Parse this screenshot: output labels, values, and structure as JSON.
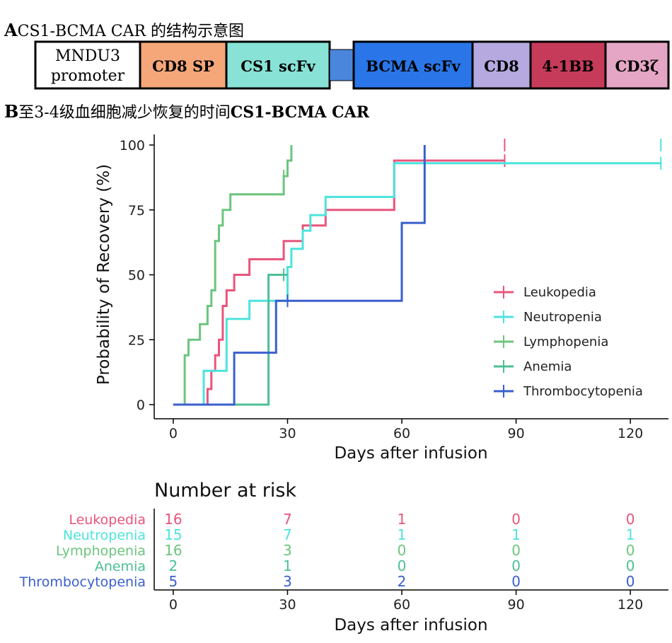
{
  "panelA": {
    "letter": "A",
    "title": "CS1-BCMA CAR 的结构示意图",
    "segments": [
      {
        "label": "MNDU3 promoter",
        "line1": "MNDU3",
        "line2": "promoter",
        "color": "#ffffff"
      },
      {
        "label": "CD8 SP",
        "color": "#f6a77a"
      },
      {
        "label": "CS1 scFv",
        "color": "#88e3d6"
      },
      {
        "label": "",
        "color": "#4a86dc"
      },
      {
        "label": "BCMA scFv",
        "color": "#2a76e8"
      },
      {
        "label": "CD8",
        "color": "#b5a9e0"
      },
      {
        "label": "4-1BB",
        "color": "#c73b5a"
      },
      {
        "label": "CD3ζ",
        "color": "#e4a6c4"
      }
    ]
  },
  "panelB": {
    "letter": "B",
    "title": "至3-4级血细胞减少恢复的时间",
    "title_bold": "CS1-BCMA CAR"
  },
  "chart_data": {
    "type": "line",
    "subtype": "kaplan-meier-step",
    "xlabel": "Days after infusion",
    "ylabel": "Probability of Recovery (%)",
    "xlim": [
      -5,
      130
    ],
    "ylim": [
      0,
      100
    ],
    "xticks": [
      0,
      30,
      60,
      90,
      120
    ],
    "yticks": [
      0,
      25,
      50,
      75,
      100
    ],
    "grid": false,
    "legend_position": "right-center",
    "series": [
      {
        "name": "Leukopedia",
        "color": "#e8557b",
        "steps": [
          [
            0,
            0
          ],
          [
            9,
            0
          ],
          [
            9,
            6
          ],
          [
            10,
            6
          ],
          [
            10,
            13
          ],
          [
            11,
            13
          ],
          [
            11,
            19
          ],
          [
            12,
            19
          ],
          [
            12,
            25
          ],
          [
            13,
            25
          ],
          [
            13,
            38
          ],
          [
            14,
            38
          ],
          [
            14,
            44
          ],
          [
            16,
            44
          ],
          [
            16,
            50
          ],
          [
            20,
            50
          ],
          [
            20,
            56
          ],
          [
            29,
            56
          ],
          [
            29,
            63
          ],
          [
            34,
            63
          ],
          [
            34,
            69
          ],
          [
            40,
            69
          ],
          [
            40,
            75
          ],
          [
            58,
            75
          ],
          [
            58,
            94
          ],
          [
            87,
            94
          ]
        ],
        "censor": [
          [
            87,
            94
          ],
          [
            87,
            100
          ]
        ]
      },
      {
        "name": "Neutropenia",
        "color": "#4de3dd",
        "steps": [
          [
            0,
            0
          ],
          [
            8,
            0
          ],
          [
            8,
            13
          ],
          [
            14,
            13
          ],
          [
            14,
            33
          ],
          [
            20,
            33
          ],
          [
            20,
            40
          ],
          [
            30,
            40
          ],
          [
            30,
            53
          ],
          [
            31,
            53
          ],
          [
            31,
            60
          ],
          [
            34,
            60
          ],
          [
            34,
            67
          ],
          [
            36,
            67
          ],
          [
            36,
            73
          ],
          [
            40,
            73
          ],
          [
            40,
            80
          ],
          [
            58,
            80
          ],
          [
            58,
            93
          ],
          [
            128,
            93
          ]
        ],
        "censor": [
          [
            128,
            93
          ],
          [
            128,
            100
          ]
        ]
      },
      {
        "name": "Lymphopenia",
        "color": "#6cc57e",
        "steps": [
          [
            0,
            0
          ],
          [
            3,
            0
          ],
          [
            3,
            19
          ],
          [
            4,
            19
          ],
          [
            4,
            25
          ],
          [
            7,
            25
          ],
          [
            7,
            31
          ],
          [
            9,
            31
          ],
          [
            9,
            38
          ],
          [
            10,
            38
          ],
          [
            10,
            44
          ],
          [
            11,
            44
          ],
          [
            11,
            63
          ],
          [
            12,
            63
          ],
          [
            12,
            69
          ],
          [
            13,
            69
          ],
          [
            13,
            75
          ],
          [
            15,
            75
          ],
          [
            15,
            81
          ],
          [
            29,
            81
          ],
          [
            29,
            88
          ],
          [
            30,
            88
          ],
          [
            30,
            94
          ],
          [
            31,
            94
          ],
          [
            31,
            100
          ]
        ],
        "censor": [
          [
            29,
            88
          ]
        ]
      },
      {
        "name": "Anemia",
        "color": "#4dbf94",
        "steps": [
          [
            0,
            0
          ],
          [
            25,
            0
          ],
          [
            25,
            50
          ],
          [
            30,
            50
          ]
        ],
        "censor": [
          [
            29,
            50
          ]
        ]
      },
      {
        "name": "Thrombocytopenia",
        "color": "#3a5fcd",
        "steps": [
          [
            0,
            0
          ],
          [
            16,
            0
          ],
          [
            16,
            20
          ],
          [
            27,
            20
          ],
          [
            27,
            40
          ],
          [
            60,
            40
          ],
          [
            60,
            70
          ],
          [
            66,
            70
          ],
          [
            66,
            100
          ]
        ],
        "censor": [
          [
            30,
            40
          ]
        ]
      }
    ],
    "risk_table": {
      "title": "Number at risk",
      "xlabel": "Days after infusion",
      "times": [
        0,
        30,
        60,
        90,
        120
      ],
      "rows": [
        {
          "name": "Leukopedia",
          "color": "#e8557b",
          "values": [
            16,
            7,
            1,
            0,
            0
          ]
        },
        {
          "name": "Neutropenia",
          "color": "#4de3dd",
          "values": [
            15,
            7,
            1,
            1,
            1
          ]
        },
        {
          "name": "Lymphopenia",
          "color": "#6cc57e",
          "values": [
            16,
            3,
            0,
            0,
            0
          ]
        },
        {
          "name": "Anemia",
          "color": "#4dbf94",
          "values": [
            2,
            1,
            0,
            0,
            0
          ]
        },
        {
          "name": "Thrombocytopenia",
          "color": "#3a5fcd",
          "values": [
            5,
            3,
            2,
            0,
            0
          ]
        }
      ]
    }
  }
}
